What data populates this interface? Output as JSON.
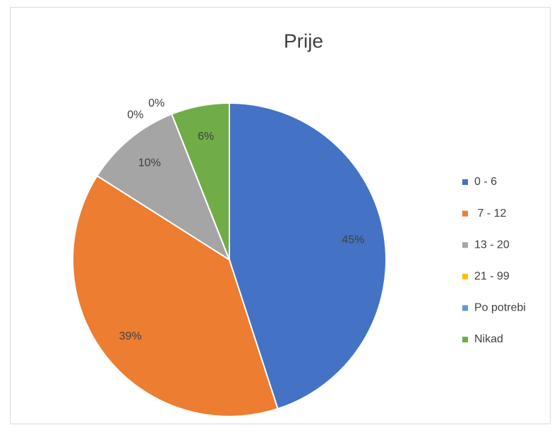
{
  "chart_data": {
    "type": "pie",
    "title": "Prije",
    "categories": [
      "0 - 6",
      " 7 - 12",
      "13 - 20",
      "21 - 99",
      "Po potrebi",
      "Nikad"
    ],
    "values": [
      45,
      39,
      10,
      0,
      0,
      6
    ],
    "value_labels": [
      "45%",
      "39%",
      "10%",
      "0%",
      "0%",
      "6%"
    ],
    "colors": [
      "#4472c4",
      "#ed7d31",
      "#a5a5a5",
      "#ffc000",
      "#5b9bd5",
      "#70ad47"
    ],
    "legend": "right"
  }
}
